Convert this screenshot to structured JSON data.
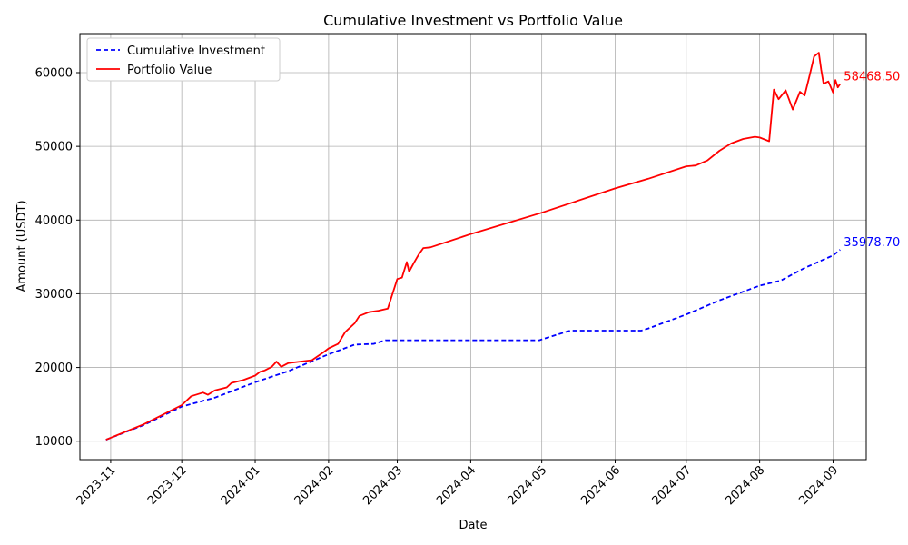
{
  "chart_data": {
    "type": "line",
    "title": "Cumulative Investment vs Portfolio Value",
    "xlabel": "Date",
    "ylabel": "Amount (USDT)",
    "xlim": [
      "2023-10-19",
      "2024-09-15"
    ],
    "ylim": [
      7500,
      65300
    ],
    "grid": true,
    "legend_position": "top-left",
    "x_ticks": [
      "2023-11",
      "2023-12",
      "2024-01",
      "2024-02",
      "2024-03",
      "2024-04",
      "2024-05",
      "2024-06",
      "2024-07",
      "2024-08",
      "2024-09"
    ],
    "y_ticks": [
      10000,
      20000,
      30000,
      40000,
      50000,
      60000
    ],
    "series": [
      {
        "name": "Cumulative Investment",
        "color": "#0000ff",
        "style": "dashed",
        "end_label": "35978.70",
        "points": [
          [
            "2023-10-30",
            10200
          ],
          [
            "2023-11-15",
            12200
          ],
          [
            "2023-12-01",
            14700
          ],
          [
            "2023-12-15",
            15900
          ],
          [
            "2024-01-01",
            18000
          ],
          [
            "2024-01-15",
            19500
          ],
          [
            "2024-02-01",
            21800
          ],
          [
            "2024-02-12",
            23100
          ],
          [
            "2024-02-20",
            23200
          ],
          [
            "2024-02-25",
            23700
          ],
          [
            "2024-04-30",
            23700
          ],
          [
            "2024-05-01",
            23800
          ],
          [
            "2024-05-13",
            25000
          ],
          [
            "2024-06-12",
            25000
          ],
          [
            "2024-06-15",
            25300
          ],
          [
            "2024-07-01",
            27200
          ],
          [
            "2024-07-15",
            29100
          ],
          [
            "2024-08-01",
            31100
          ],
          [
            "2024-08-10",
            31800
          ],
          [
            "2024-08-20",
            33500
          ],
          [
            "2024-09-01",
            35200
          ],
          [
            "2024-09-04",
            35978.7
          ]
        ]
      },
      {
        "name": "Portfolio Value",
        "color": "#ff0000",
        "style": "solid",
        "end_label": "58468.50",
        "points": [
          [
            "2023-10-30",
            10200
          ],
          [
            "2023-11-15",
            12300
          ],
          [
            "2023-12-01",
            14900
          ],
          [
            "2023-12-05",
            16100
          ],
          [
            "2023-12-10",
            16600
          ],
          [
            "2023-12-12",
            16300
          ],
          [
            "2023-12-15",
            16900
          ],
          [
            "2023-12-20",
            17300
          ],
          [
            "2023-12-22",
            17900
          ],
          [
            "2023-12-27",
            18300
          ],
          [
            "2024-01-01",
            18900
          ],
          [
            "2024-01-03",
            19400
          ],
          [
            "2024-01-05",
            19600
          ],
          [
            "2024-01-08",
            20100
          ],
          [
            "2024-01-10",
            20800
          ],
          [
            "2024-01-12",
            20100
          ],
          [
            "2024-01-15",
            20600
          ],
          [
            "2024-01-20",
            20800
          ],
          [
            "2024-01-25",
            21000
          ],
          [
            "2024-01-30",
            22100
          ],
          [
            "2024-02-01",
            22600
          ],
          [
            "2024-02-05",
            23200
          ],
          [
            "2024-02-08",
            24800
          ],
          [
            "2024-02-12",
            26000
          ],
          [
            "2024-02-14",
            27000
          ],
          [
            "2024-02-18",
            27500
          ],
          [
            "2024-02-22",
            27700
          ],
          [
            "2024-02-26",
            28000
          ],
          [
            "2024-02-28",
            30000
          ],
          [
            "2024-03-01",
            32000
          ],
          [
            "2024-03-03",
            32200
          ],
          [
            "2024-03-05",
            34300
          ],
          [
            "2024-03-06",
            33000
          ],
          [
            "2024-03-08",
            34200
          ],
          [
            "2024-03-10",
            35300
          ],
          [
            "2024-03-12",
            36200
          ],
          [
            "2024-03-15",
            36300
          ],
          [
            "2024-04-01",
            38100
          ],
          [
            "2024-05-01",
            41000
          ],
          [
            "2024-06-01",
            44300
          ],
          [
            "2024-06-15",
            45600
          ],
          [
            "2024-07-01",
            47300
          ],
          [
            "2024-07-05",
            47400
          ],
          [
            "2024-07-10",
            48100
          ],
          [
            "2024-07-15",
            49400
          ],
          [
            "2024-07-20",
            50400
          ],
          [
            "2024-07-25",
            51000
          ],
          [
            "2024-07-30",
            51300
          ],
          [
            "2024-08-01",
            51200
          ],
          [
            "2024-08-05",
            50700
          ],
          [
            "2024-08-07",
            57700
          ],
          [
            "2024-08-09",
            56400
          ],
          [
            "2024-08-12",
            57600
          ],
          [
            "2024-08-15",
            55000
          ],
          [
            "2024-08-18",
            57400
          ],
          [
            "2024-08-20",
            56900
          ],
          [
            "2024-08-22",
            59500
          ],
          [
            "2024-08-24",
            62200
          ],
          [
            "2024-08-26",
            62700
          ],
          [
            "2024-08-27",
            60400
          ],
          [
            "2024-08-28",
            58500
          ],
          [
            "2024-08-30",
            58800
          ],
          [
            "2024-09-01",
            57300
          ],
          [
            "2024-09-02",
            59000
          ],
          [
            "2024-09-03",
            58000
          ],
          [
            "2024-09-04",
            58468.5
          ]
        ]
      }
    ]
  }
}
